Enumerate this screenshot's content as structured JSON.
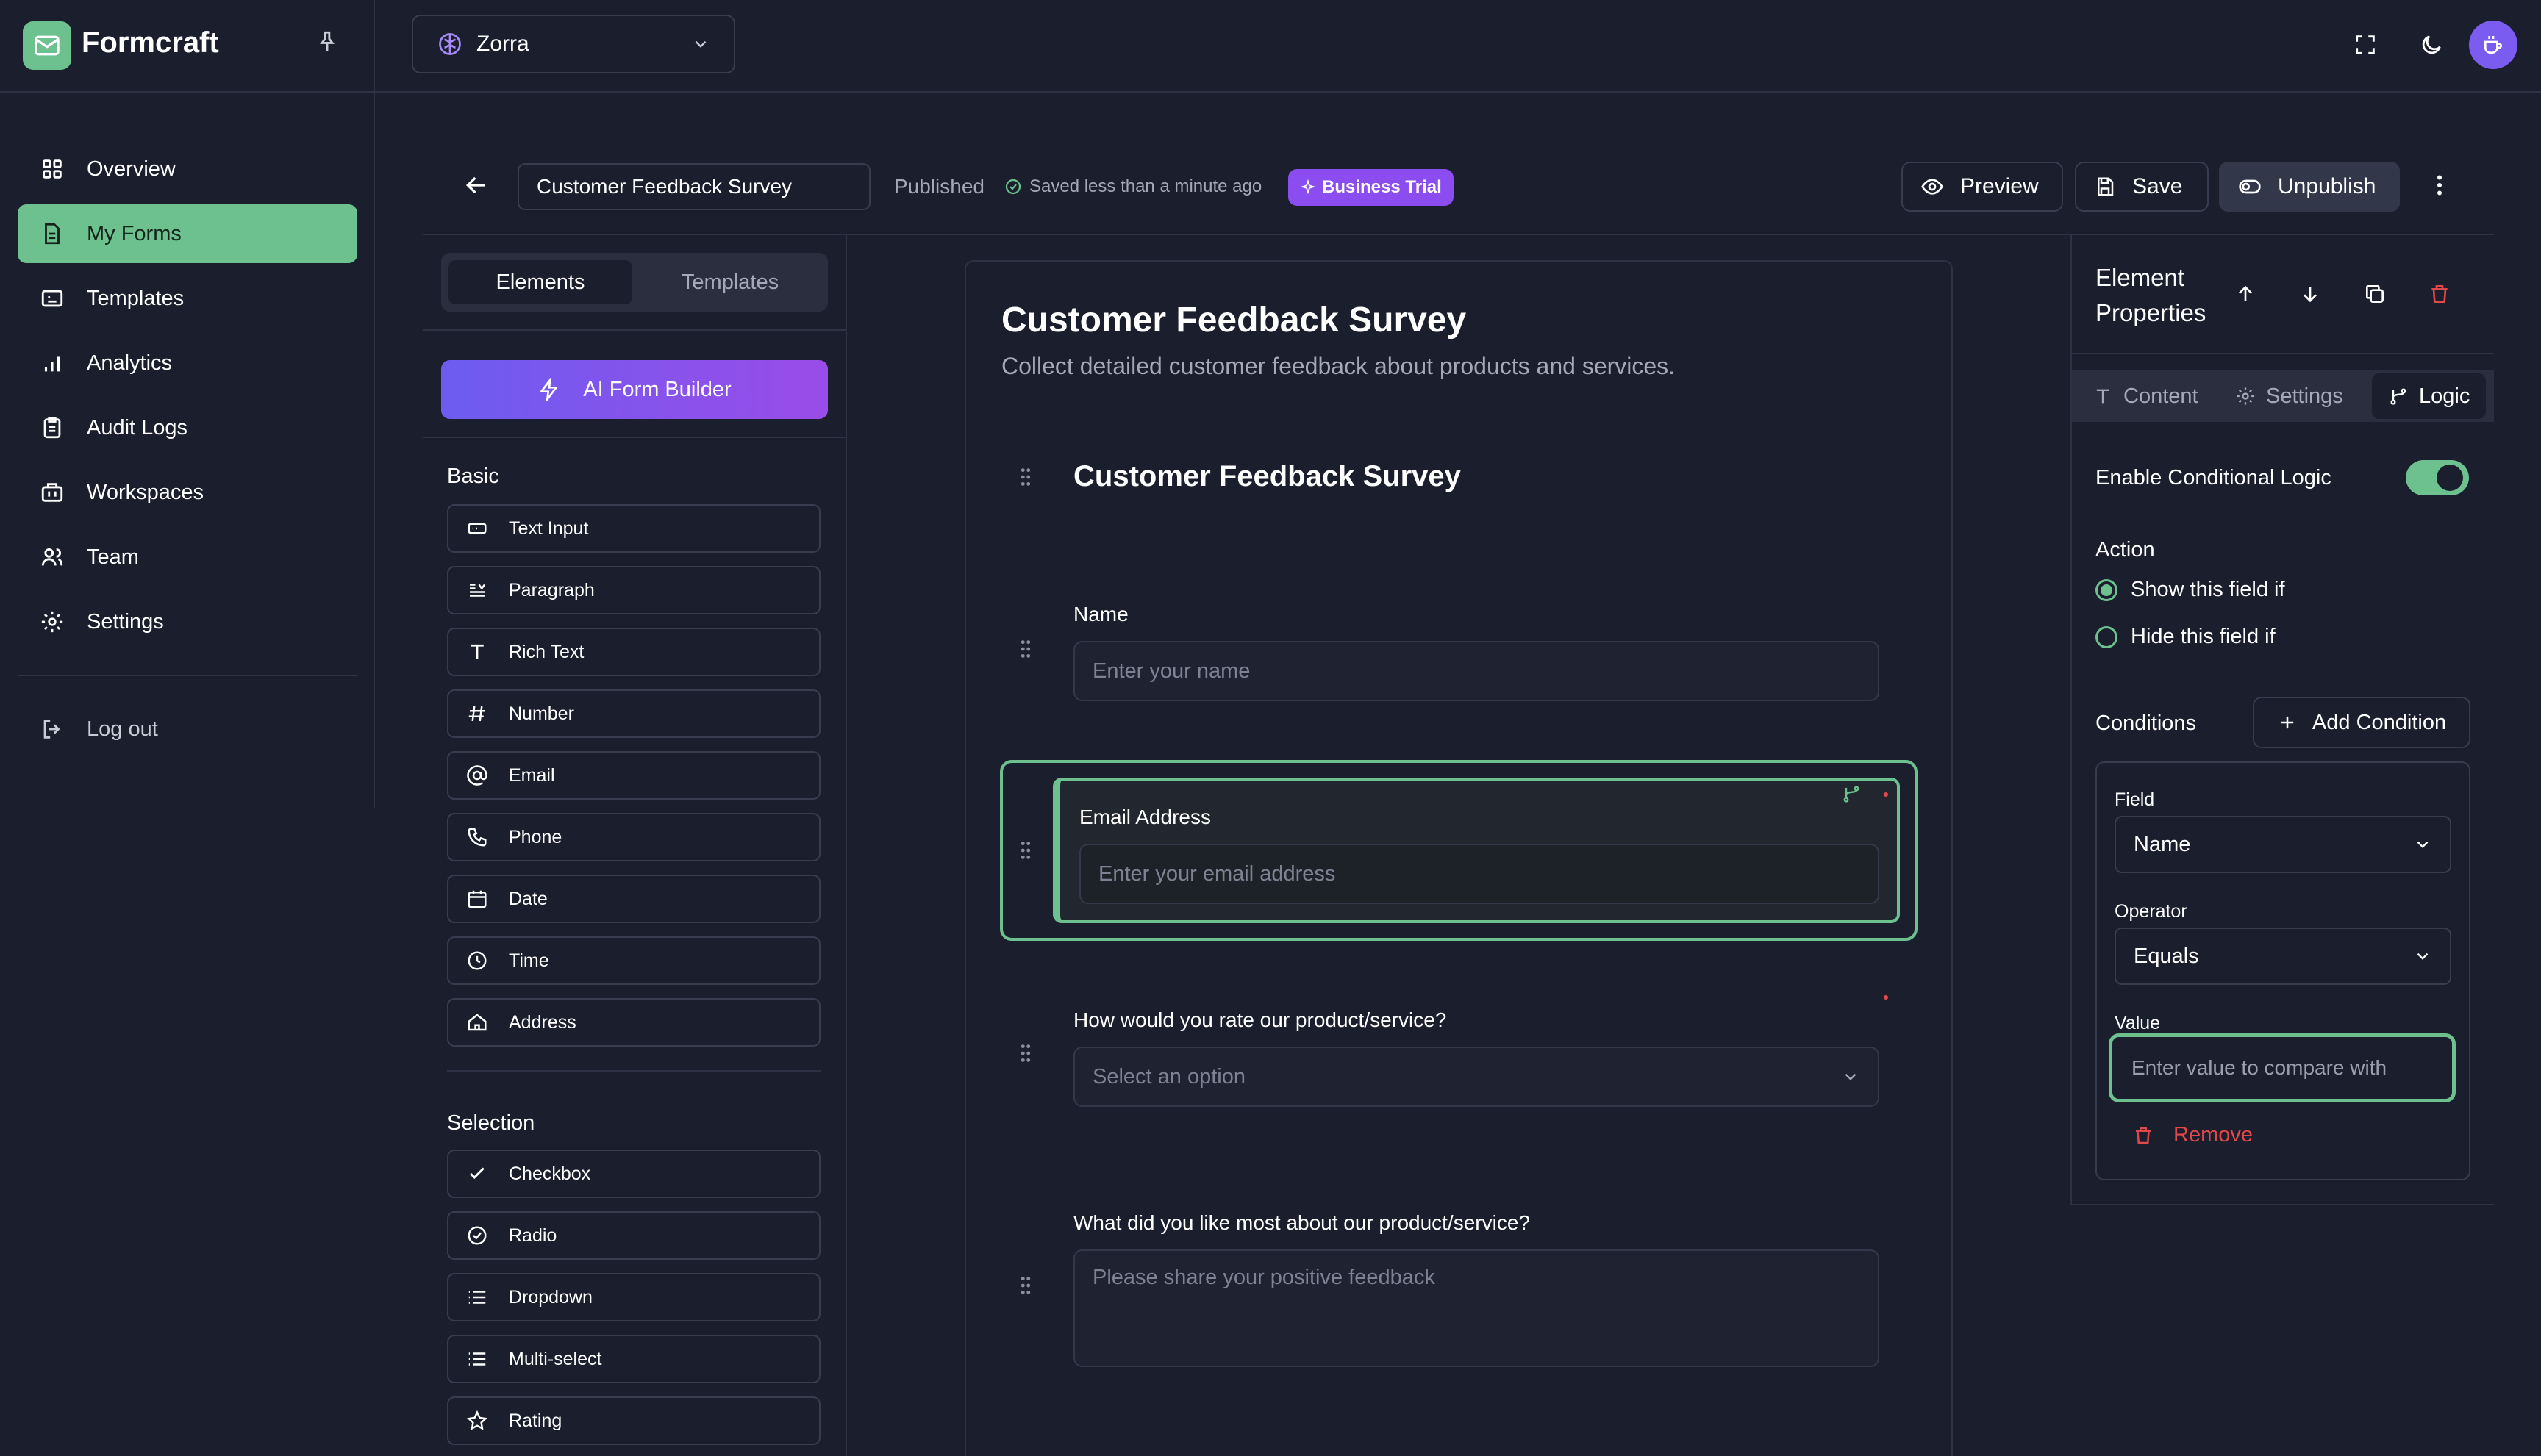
{
  "app": {
    "brand": "Formcraft",
    "workspace": "Zorra"
  },
  "colors": {
    "accent": "#6cc18f",
    "danger": "#e0484a",
    "badge": "#8b4cf0",
    "background": "#1b1e2c"
  },
  "sidebar": {
    "items": [
      {
        "label": "Overview",
        "icon": "overview-icon"
      },
      {
        "label": "My Forms",
        "icon": "forms-icon",
        "active": true
      },
      {
        "label": "Templates",
        "icon": "templates-icon"
      },
      {
        "label": "Analytics",
        "icon": "analytics-icon"
      },
      {
        "label": "Audit Logs",
        "icon": "audit-logs-icon"
      },
      {
        "label": "Workspaces",
        "icon": "workspaces-icon"
      },
      {
        "label": "Team",
        "icon": "team-icon"
      },
      {
        "label": "Settings",
        "icon": "settings-gear-icon"
      }
    ],
    "logout": "Log out"
  },
  "header": {
    "form_name": "Customer Feedback Survey",
    "status": "Published",
    "saved": "Saved less than a minute ago",
    "badge": "Business Trial",
    "preview": "Preview",
    "save": "Save",
    "unpublish": "Unpublish"
  },
  "elements_panel": {
    "tab_elements": "Elements",
    "tab_templates": "Templates",
    "ai_button": "AI Form Builder",
    "basic_title": "Basic",
    "basic": [
      {
        "label": "Text Input",
        "icon": "text-input-icon"
      },
      {
        "label": "Paragraph",
        "icon": "paragraph-icon"
      },
      {
        "label": "Rich Text",
        "icon": "rich-text-icon"
      },
      {
        "label": "Number",
        "icon": "hash-icon"
      },
      {
        "label": "Email",
        "icon": "at-icon"
      },
      {
        "label": "Phone",
        "icon": "phone-icon"
      },
      {
        "label": "Date",
        "icon": "calendar-icon"
      },
      {
        "label": "Time",
        "icon": "clock-icon"
      },
      {
        "label": "Address",
        "icon": "home-icon"
      }
    ],
    "selection_title": "Selection",
    "selection": [
      {
        "label": "Checkbox",
        "icon": "check-icon"
      },
      {
        "label": "Radio",
        "icon": "radio-icon"
      },
      {
        "label": "Dropdown",
        "icon": "list-icon"
      },
      {
        "label": "Multi-select",
        "icon": "list-icon"
      },
      {
        "label": "Rating",
        "icon": "star-icon"
      }
    ]
  },
  "form": {
    "title": "Customer Feedback Survey",
    "description": "Collect detailed customer feedback about products and services.",
    "section_heading": "Customer Feedback Survey",
    "fields": {
      "name_label": "Name",
      "name_placeholder": "Enter your name",
      "email_label": "Email Address",
      "email_placeholder": "Enter your email address",
      "rating_label": "How would you rate our product/service?",
      "rating_placeholder": "Select an option",
      "liked_label": "What did you like most about our product/service?",
      "liked_placeholder": "Please share your positive feedback"
    }
  },
  "properties": {
    "title": "Element Properties",
    "tabs": [
      "Content",
      "Settings",
      "Logic"
    ],
    "active_tab": "Logic",
    "enable_logic": "Enable Conditional Logic",
    "enable_logic_on": true,
    "action_label": "Action",
    "show_option": "Show this field if",
    "hide_option": "Hide this field if",
    "conditions_label": "Conditions",
    "add_condition": "Add Condition",
    "field_label": "Field",
    "field_value": "Name",
    "operator_label": "Operator",
    "operator_value": "Equals",
    "value_label": "Value",
    "value_placeholder": "Enter value to compare with",
    "remove": "Remove"
  }
}
